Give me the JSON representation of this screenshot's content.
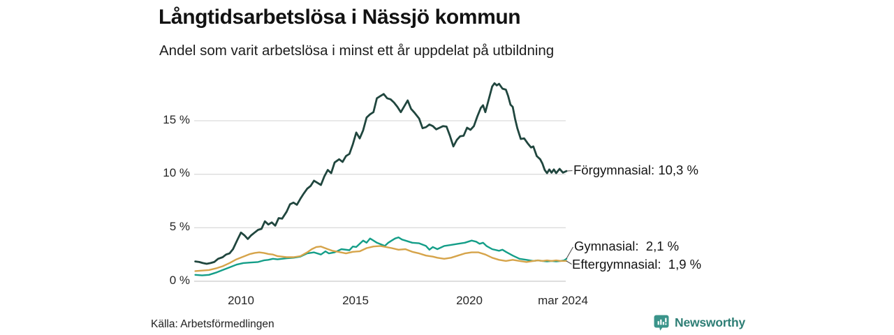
{
  "title": "Långtidsarbetslösa i Nässjö kommun",
  "subtitle": "Andel som varit arbetslösa i minst ett år uppdelat på utbildning",
  "source": "Källa: Arbetsförmedlingen",
  "branding": {
    "name": "Newsworthy",
    "icon": "newsworthy-speech-bubble-chart-icon",
    "text_color": "#2e7e75",
    "icon_color": "#3a948a"
  },
  "colors": {
    "background": "#ffffff",
    "gridline": "#dcdcdc",
    "baseline": "#c9c9c9",
    "leader": "#4d4d4d"
  },
  "chart_data": {
    "type": "line",
    "title": "Långtidsarbetslösa i Nässjö kommun",
    "subtitle": "Andel som varit arbetslösa i minst ett år uppdelat på utbildning",
    "unit": "%",
    "grid": "horizontal-only",
    "legend_position": "end-of-line-labels",
    "x_axis": {
      "range": [
        2008.0,
        2024.25
      ],
      "ticks": [
        {
          "label": "2010",
          "year": 2010
        },
        {
          "label": "2015",
          "year": 2015
        },
        {
          "label": "2020",
          "year": 2020
        },
        {
          "label": "mar 2024",
          "year": 2024.17
        }
      ]
    },
    "y_axis": {
      "range": [
        0,
        19
      ],
      "ticks": [
        {
          "label": "0 %",
          "value": 0
        },
        {
          "label": "5 %",
          "value": 5
        },
        {
          "label": "10 %",
          "value": 10
        },
        {
          "label": "15 %",
          "value": 15
        }
      ]
    },
    "series": [
      {
        "name": "Förgymnasial",
        "last_value_label": "10,3 %",
        "end_label": "Förgymnasial: 10,3 %",
        "color": "#20463e",
        "width": 2.8,
        "points": [
          [
            2008.0,
            1.85
          ],
          [
            2008.17,
            1.8
          ],
          [
            2008.33,
            1.7
          ],
          [
            2008.5,
            1.63
          ],
          [
            2008.67,
            1.7
          ],
          [
            2008.83,
            1.8
          ],
          [
            2009.0,
            2.1
          ],
          [
            2009.2,
            2.25
          ],
          [
            2009.35,
            2.5
          ],
          [
            2009.5,
            2.6
          ],
          [
            2009.65,
            3.0
          ],
          [
            2009.85,
            3.9
          ],
          [
            2010.0,
            4.55
          ],
          [
            2010.15,
            4.3
          ],
          [
            2010.3,
            3.95
          ],
          [
            2010.45,
            4.3
          ],
          [
            2010.6,
            4.55
          ],
          [
            2010.75,
            4.8
          ],
          [
            2010.9,
            4.9
          ],
          [
            2011.05,
            5.6
          ],
          [
            2011.2,
            5.3
          ],
          [
            2011.35,
            5.5
          ],
          [
            2011.5,
            5.2
          ],
          [
            2011.65,
            5.9
          ],
          [
            2011.8,
            5.85
          ],
          [
            2012.0,
            6.5
          ],
          [
            2012.15,
            7.2
          ],
          [
            2012.3,
            7.35
          ],
          [
            2012.45,
            7.15
          ],
          [
            2012.6,
            7.7
          ],
          [
            2012.75,
            8.2
          ],
          [
            2012.9,
            8.65
          ],
          [
            2013.05,
            8.9
          ],
          [
            2013.2,
            9.4
          ],
          [
            2013.35,
            9.2
          ],
          [
            2013.5,
            9.0
          ],
          [
            2013.65,
            9.8
          ],
          [
            2013.8,
            10.4
          ],
          [
            2013.95,
            10.1
          ],
          [
            2014.1,
            11.1
          ],
          [
            2014.3,
            11.4
          ],
          [
            2014.45,
            11.15
          ],
          [
            2014.6,
            11.7
          ],
          [
            2014.75,
            11.9
          ],
          [
            2014.9,
            12.8
          ],
          [
            2015.05,
            13.9
          ],
          [
            2015.2,
            13.35
          ],
          [
            2015.35,
            14.1
          ],
          [
            2015.5,
            15.3
          ],
          [
            2015.65,
            15.6
          ],
          [
            2015.8,
            15.8
          ],
          [
            2015.95,
            17.1
          ],
          [
            2016.1,
            17.3
          ],
          [
            2016.25,
            17.5
          ],
          [
            2016.4,
            17.1
          ],
          [
            2016.55,
            17.0
          ],
          [
            2016.7,
            16.7
          ],
          [
            2016.85,
            16.3
          ],
          [
            2017.0,
            15.8
          ],
          [
            2017.15,
            16.35
          ],
          [
            2017.3,
            16.9
          ],
          [
            2017.45,
            16.1
          ],
          [
            2017.6,
            15.75
          ],
          [
            2017.8,
            15.2
          ],
          [
            2017.95,
            14.3
          ],
          [
            2018.1,
            14.4
          ],
          [
            2018.25,
            14.65
          ],
          [
            2018.4,
            14.5
          ],
          [
            2018.55,
            14.2
          ],
          [
            2018.7,
            14.35
          ],
          [
            2018.85,
            14.5
          ],
          [
            2019.0,
            14.45
          ],
          [
            2019.15,
            13.6
          ],
          [
            2019.3,
            12.6
          ],
          [
            2019.45,
            13.2
          ],
          [
            2019.6,
            13.55
          ],
          [
            2019.75,
            13.6
          ],
          [
            2019.9,
            14.35
          ],
          [
            2020.05,
            14.15
          ],
          [
            2020.2,
            14.5
          ],
          [
            2020.35,
            15.4
          ],
          [
            2020.5,
            16.2
          ],
          [
            2020.6,
            16.45
          ],
          [
            2020.7,
            15.8
          ],
          [
            2020.85,
            17.0
          ],
          [
            2021.0,
            18.2
          ],
          [
            2021.1,
            18.5
          ],
          [
            2021.2,
            18.3
          ],
          [
            2021.3,
            18.45
          ],
          [
            2021.45,
            18.0
          ],
          [
            2021.6,
            17.9
          ],
          [
            2021.7,
            17.3
          ],
          [
            2021.8,
            16.5
          ],
          [
            2021.9,
            16.3
          ],
          [
            2022.0,
            15.2
          ],
          [
            2022.1,
            14.3
          ],
          [
            2022.25,
            13.3
          ],
          [
            2022.4,
            13.35
          ],
          [
            2022.55,
            12.9
          ],
          [
            2022.7,
            12.5
          ],
          [
            2022.8,
            12.6
          ],
          [
            2022.95,
            11.7
          ],
          [
            2023.1,
            11.4
          ],
          [
            2023.2,
            11.0
          ],
          [
            2023.3,
            10.4
          ],
          [
            2023.4,
            10.1
          ],
          [
            2023.5,
            10.45
          ],
          [
            2023.6,
            10.15
          ],
          [
            2023.7,
            10.45
          ],
          [
            2023.8,
            10.1
          ],
          [
            2023.95,
            10.5
          ],
          [
            2024.1,
            10.15
          ],
          [
            2024.25,
            10.3
          ]
        ]
      },
      {
        "name": "Gymnasial",
        "last_value_label": "2,1 %",
        "end_label": "Gymnasial:  2,1 %",
        "color": "#149e88",
        "width": 2.4,
        "points": [
          [
            2008.0,
            0.6
          ],
          [
            2008.3,
            0.55
          ],
          [
            2008.6,
            0.6
          ],
          [
            2008.9,
            0.8
          ],
          [
            2009.2,
            1.05
          ],
          [
            2009.5,
            1.3
          ],
          [
            2009.8,
            1.55
          ],
          [
            2010.1,
            1.7
          ],
          [
            2010.4,
            1.75
          ],
          [
            2010.75,
            1.8
          ],
          [
            2011.0,
            1.95
          ],
          [
            2011.2,
            2.0
          ],
          [
            2011.4,
            2.1
          ],
          [
            2011.6,
            2.05
          ],
          [
            2011.8,
            2.1
          ],
          [
            2012.0,
            2.15
          ],
          [
            2012.3,
            2.2
          ],
          [
            2012.6,
            2.3
          ],
          [
            2012.9,
            2.6
          ],
          [
            2013.2,
            2.7
          ],
          [
            2013.5,
            2.5
          ],
          [
            2013.7,
            2.8
          ],
          [
            2013.85,
            2.6
          ],
          [
            2014.1,
            2.7
          ],
          [
            2014.4,
            3.0
          ],
          [
            2014.75,
            2.9
          ],
          [
            2014.9,
            3.25
          ],
          [
            2015.05,
            3.2
          ],
          [
            2015.35,
            3.8
          ],
          [
            2015.5,
            3.6
          ],
          [
            2015.65,
            4.0
          ],
          [
            2015.8,
            3.8
          ],
          [
            2015.95,
            3.6
          ],
          [
            2016.3,
            3.3
          ],
          [
            2016.45,
            3.6
          ],
          [
            2016.6,
            3.8
          ],
          [
            2016.75,
            4.0
          ],
          [
            2016.9,
            4.1
          ],
          [
            2017.05,
            3.9
          ],
          [
            2017.2,
            3.8
          ],
          [
            2017.5,
            3.6
          ],
          [
            2017.8,
            3.55
          ],
          [
            2018.1,
            3.3
          ],
          [
            2018.25,
            2.95
          ],
          [
            2018.4,
            3.2
          ],
          [
            2018.6,
            3.0
          ],
          [
            2018.9,
            3.3
          ],
          [
            2019.2,
            3.4
          ],
          [
            2019.5,
            3.5
          ],
          [
            2019.8,
            3.6
          ],
          [
            2020.1,
            3.8
          ],
          [
            2020.3,
            3.7
          ],
          [
            2020.45,
            3.5
          ],
          [
            2020.6,
            3.6
          ],
          [
            2020.75,
            3.3
          ],
          [
            2021.0,
            3.0
          ],
          [
            2021.3,
            2.85
          ],
          [
            2021.45,
            2.95
          ],
          [
            2021.6,
            2.75
          ],
          [
            2021.9,
            2.4
          ],
          [
            2022.2,
            2.1
          ],
          [
            2022.5,
            2.0
          ],
          [
            2022.8,
            1.9
          ],
          [
            2023.0,
            1.95
          ],
          [
            2023.2,
            1.9
          ],
          [
            2023.4,
            1.85
          ],
          [
            2023.6,
            1.9
          ],
          [
            2023.8,
            1.85
          ],
          [
            2024.0,
            1.9
          ],
          [
            2024.15,
            1.95
          ],
          [
            2024.25,
            2.1
          ]
        ]
      },
      {
        "name": "Eftergymnasial",
        "last_value_label": "1,9 %",
        "end_label": "Eftergymnasial:  1,9 %",
        "color": "#d6a44a",
        "width": 2.4,
        "points": [
          [
            2008.0,
            0.95
          ],
          [
            2008.3,
            1.0
          ],
          [
            2008.6,
            1.05
          ],
          [
            2008.9,
            1.2
          ],
          [
            2009.2,
            1.4
          ],
          [
            2009.5,
            1.7
          ],
          [
            2009.8,
            2.05
          ],
          [
            2010.1,
            2.3
          ],
          [
            2010.4,
            2.55
          ],
          [
            2010.6,
            2.65
          ],
          [
            2010.8,
            2.7
          ],
          [
            2011.0,
            2.65
          ],
          [
            2011.2,
            2.55
          ],
          [
            2011.4,
            2.5
          ],
          [
            2011.6,
            2.35
          ],
          [
            2011.8,
            2.3
          ],
          [
            2012.0,
            2.25
          ],
          [
            2012.3,
            2.25
          ],
          [
            2012.6,
            2.35
          ],
          [
            2012.9,
            2.7
          ],
          [
            2013.1,
            3.0
          ],
          [
            2013.3,
            3.2
          ],
          [
            2013.5,
            3.25
          ],
          [
            2013.8,
            3.0
          ],
          [
            2014.0,
            2.85
          ],
          [
            2014.25,
            2.75
          ],
          [
            2014.6,
            2.6
          ],
          [
            2014.9,
            2.75
          ],
          [
            2015.2,
            2.8
          ],
          [
            2015.5,
            3.1
          ],
          [
            2015.8,
            3.25
          ],
          [
            2016.1,
            3.3
          ],
          [
            2016.35,
            3.2
          ],
          [
            2016.6,
            3.1
          ],
          [
            2016.9,
            2.95
          ],
          [
            2017.2,
            3.0
          ],
          [
            2017.5,
            2.75
          ],
          [
            2017.8,
            2.6
          ],
          [
            2018.1,
            2.4
          ],
          [
            2018.4,
            2.3
          ],
          [
            2018.6,
            2.2
          ],
          [
            2018.9,
            2.1
          ],
          [
            2019.2,
            2.2
          ],
          [
            2019.5,
            2.4
          ],
          [
            2019.8,
            2.6
          ],
          [
            2020.1,
            2.7
          ],
          [
            2020.4,
            2.7
          ],
          [
            2020.7,
            2.5
          ],
          [
            2021.0,
            2.2
          ],
          [
            2021.3,
            2.0
          ],
          [
            2021.6,
            1.9
          ],
          [
            2021.9,
            2.0
          ],
          [
            2022.2,
            1.9
          ],
          [
            2022.5,
            1.8
          ],
          [
            2022.8,
            1.9
          ],
          [
            2023.0,
            1.95
          ],
          [
            2023.2,
            1.9
          ],
          [
            2023.4,
            1.95
          ],
          [
            2023.6,
            1.9
          ],
          [
            2023.8,
            1.95
          ],
          [
            2024.0,
            1.9
          ],
          [
            2024.25,
            1.9
          ]
        ]
      }
    ]
  }
}
